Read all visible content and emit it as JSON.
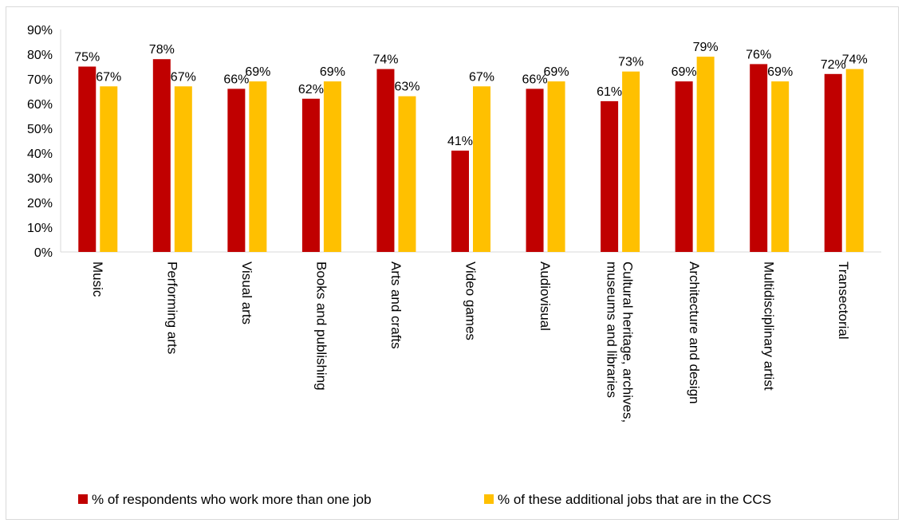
{
  "chart_data": {
    "type": "bar",
    "categories": [
      "Music",
      "Performing arts",
      "Visual arts",
      "Books and publishing",
      "Arts and crafts",
      "Video games",
      "Audiovisual",
      "Cultural heritage, archives, museums and libraries",
      "Architecture and design",
      "Multidisciplinary artist",
      "Transectorial"
    ],
    "category_lines": [
      [
        "Music"
      ],
      [
        "Performing arts"
      ],
      [
        "Visual arts"
      ],
      [
        "Books and publishing"
      ],
      [
        "Arts and crafts"
      ],
      [
        "Video games"
      ],
      [
        "Audiovisual"
      ],
      [
        "Cultural heritage, archives,",
        "museums and libraries"
      ],
      [
        "Architecture and design"
      ],
      [
        "Multidisciplinary artist"
      ],
      [
        "Transectorial"
      ]
    ],
    "series": [
      {
        "name": "% of respondents who work more than one job",
        "color": "#c00000",
        "values": [
          75,
          78,
          66,
          62,
          74,
          41,
          66,
          61,
          69,
          76,
          72
        ],
        "labels": [
          "75%",
          "78%",
          "66%",
          "62%",
          "74%",
          "41%",
          "66%",
          "61%",
          "69%",
          "76%",
          "72%"
        ]
      },
      {
        "name": "% of these additional jobs that are in the CCS",
        "color": "#ffc000",
        "values": [
          67,
          67,
          69,
          69,
          63,
          67,
          69,
          73,
          79,
          69,
          74
        ],
        "labels": [
          "67%",
          "67%",
          "69%",
          "69%",
          "63%",
          "67%",
          "69%",
          "73%",
          "79%",
          "69%",
          "74%"
        ]
      }
    ],
    "y_ticks": [
      "0%",
      "10%",
      "20%",
      "30%",
      "40%",
      "50%",
      "60%",
      "70%",
      "80%",
      "90%"
    ],
    "ylim": [
      0,
      90
    ],
    "xlabel": "",
    "ylabel": "",
    "grid": false,
    "legend_position": "bottom"
  }
}
